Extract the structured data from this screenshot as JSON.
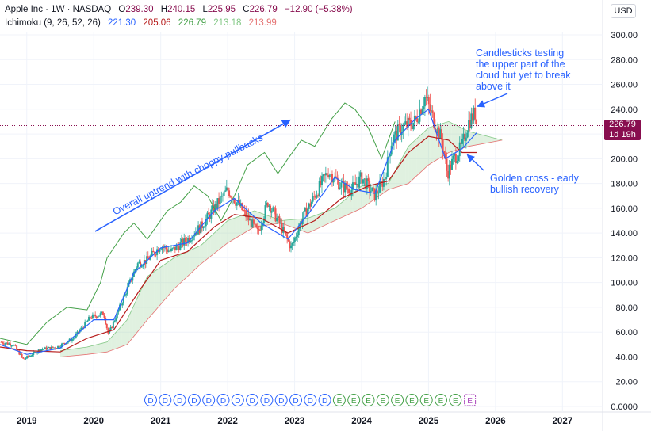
{
  "header": {
    "symbol": "Apple Inc · 1W · NASDAQ",
    "open_label": "O",
    "open": "239.30",
    "high_label": "H",
    "high": "240.15",
    "low_label": "L",
    "low": "225.95",
    "close_label": "C",
    "close": "226.79",
    "change": "−12.90 (−5.38%)",
    "indicator": "Ichimoku (9, 26, 52, 26)",
    "ind_values": [
      "221.30",
      "205.06",
      "226.79",
      "213.18",
      "213.99"
    ]
  },
  "currency": "USD",
  "last_price": {
    "value": "226.79",
    "countdown": "1d 19h"
  },
  "annotations": {
    "trend": "Overall uptrend with choppy pullbacks",
    "cloud_test": [
      "Candlesticks testing",
      "the upper part of the",
      "cloud but yet to break",
      "above it"
    ],
    "golden_cross": [
      "Golden cross - early",
      "bullish recovery"
    ]
  },
  "colors": {
    "up": "#26a69a",
    "down": "#ef5350",
    "conversion": "#2962ff",
    "base": "#b71c1c",
    "lagging": "#43a047",
    "cloud_bull": "#a5d6a7",
    "cloud_bear": "#ef9a9a",
    "annotation": "#2962ff",
    "price_line": "#880e4f"
  },
  "chart_data": {
    "type": "candlestick",
    "x_ticks": [
      "2019",
      "2020",
      "2021",
      "2022",
      "2023",
      "2024",
      "2025",
      "2026",
      "2027"
    ],
    "y_ticks": [
      "0.0000",
      "20.00",
      "40.00",
      "60.00",
      "80.00",
      "100.00",
      "120.00",
      "140.00",
      "160.00",
      "180.00",
      "200.00",
      "220.00",
      "240.00",
      "260.00",
      "280.00",
      "300.00"
    ],
    "ylim": [
      0,
      310
    ],
    "xlim": [
      2018.6,
      2027.6
    ],
    "close_path": [
      [
        2018.6,
        52
      ],
      [
        2018.8,
        50
      ],
      [
        2018.95,
        38
      ],
      [
        2019.2,
        46
      ],
      [
        2019.45,
        48
      ],
      [
        2019.7,
        55
      ],
      [
        2019.95,
        72
      ],
      [
        2020.15,
        75
      ],
      [
        2020.22,
        58
      ],
      [
        2020.45,
        88
      ],
      [
        2020.65,
        115
      ],
      [
        2020.8,
        118
      ],
      [
        2021.0,
        130
      ],
      [
        2021.15,
        125
      ],
      [
        2021.4,
        135
      ],
      [
        2021.6,
        145
      ],
      [
        2021.8,
        160
      ],
      [
        2022.0,
        175
      ],
      [
        2022.2,
        160
      ],
      [
        2022.45,
        140
      ],
      [
        2022.6,
        165
      ],
      [
        2022.8,
        145
      ],
      [
        2022.95,
        128
      ],
      [
        2023.1,
        150
      ],
      [
        2023.3,
        170
      ],
      [
        2023.5,
        190
      ],
      [
        2023.7,
        178
      ],
      [
        2023.85,
        175
      ],
      [
        2024.0,
        185
      ],
      [
        2024.2,
        170
      ],
      [
        2024.35,
        185
      ],
      [
        2024.45,
        215
      ],
      [
        2024.6,
        225
      ],
      [
        2024.8,
        230
      ],
      [
        2024.95,
        250
      ],
      [
        2025.05,
        235
      ],
      [
        2025.2,
        215
      ],
      [
        2025.28,
        188
      ],
      [
        2025.38,
        200
      ],
      [
        2025.5,
        210
      ],
      [
        2025.6,
        230
      ],
      [
        2025.7,
        237
      ],
      [
        2025.72,
        227
      ]
    ],
    "conversion_line": [
      [
        2018.6,
        50
      ],
      [
        2019.0,
        42
      ],
      [
        2019.5,
        47
      ],
      [
        2020.0,
        70
      ],
      [
        2020.3,
        70
      ],
      [
        2020.6,
        108
      ],
      [
        2021.0,
        128
      ],
      [
        2021.4,
        132
      ],
      [
        2021.8,
        158
      ],
      [
        2022.1,
        168
      ],
      [
        2022.5,
        148
      ],
      [
        2022.9,
        135
      ],
      [
        2023.2,
        155
      ],
      [
        2023.6,
        185
      ],
      [
        2023.9,
        175
      ],
      [
        2024.2,
        172
      ],
      [
        2024.5,
        215
      ],
      [
        2024.8,
        232
      ],
      [
        2025.0,
        240
      ],
      [
        2025.25,
        200
      ],
      [
        2025.5,
        208
      ],
      [
        2025.72,
        221
      ]
    ],
    "base_line": [
      [
        2018.6,
        48
      ],
      [
        2019.0,
        45
      ],
      [
        2019.5,
        44
      ],
      [
        2019.9,
        55
      ],
      [
        2020.3,
        62
      ],
      [
        2020.7,
        95
      ],
      [
        2021.0,
        118
      ],
      [
        2021.4,
        125
      ],
      [
        2021.8,
        145
      ],
      [
        2022.1,
        155
      ],
      [
        2022.5,
        152
      ],
      [
        2022.9,
        140
      ],
      [
        2023.3,
        150
      ],
      [
        2023.7,
        168
      ],
      [
        2024.1,
        178
      ],
      [
        2024.4,
        182
      ],
      [
        2024.7,
        205
      ],
      [
        2025.0,
        218
      ],
      [
        2025.3,
        215
      ],
      [
        2025.5,
        205
      ],
      [
        2025.72,
        205
      ]
    ],
    "lagging_span": [
      [
        2018.6,
        55
      ],
      [
        2019.0,
        50
      ],
      [
        2019.3,
        68
      ],
      [
        2019.6,
        80
      ],
      [
        2019.9,
        78
      ],
      [
        2020.1,
        100
      ],
      [
        2020.2,
        120
      ],
      [
        2020.45,
        140
      ],
      [
        2020.6,
        148
      ],
      [
        2020.8,
        135
      ],
      [
        2021.1,
        158
      ],
      [
        2021.3,
        165
      ],
      [
        2021.5,
        178
      ],
      [
        2021.7,
        170
      ],
      [
        2021.9,
        150
      ],
      [
        2022.1,
        170
      ],
      [
        2022.3,
        195
      ],
      [
        2022.55,
        205
      ],
      [
        2022.75,
        188
      ],
      [
        2022.9,
        200
      ],
      [
        2023.1,
        215
      ],
      [
        2023.3,
        210
      ],
      [
        2023.55,
        232
      ],
      [
        2023.75,
        245
      ],
      [
        2023.9,
        240
      ],
      [
        2024.1,
        225
      ],
      [
        2024.3,
        200
      ],
      [
        2024.5,
        230
      ]
    ],
    "span_a": [
      [
        2019.5,
        45
      ],
      [
        2019.9,
        48
      ],
      [
        2020.2,
        52
      ],
      [
        2020.5,
        70
      ],
      [
        2020.8,
        105
      ],
      [
        2021.2,
        120
      ],
      [
        2021.6,
        130
      ],
      [
        2022.0,
        150
      ],
      [
        2022.4,
        158
      ],
      [
        2022.8,
        150
      ],
      [
        2023.2,
        152
      ],
      [
        2023.6,
        160
      ],
      [
        2024.0,
        178
      ],
      [
        2024.4,
        180
      ],
      [
        2024.7,
        210
      ],
      [
        2025.0,
        225
      ],
      [
        2025.3,
        230
      ],
      [
        2025.6,
        222
      ],
      [
        2026.1,
        215
      ]
    ],
    "span_b": [
      [
        2019.5,
        40
      ],
      [
        2019.9,
        42
      ],
      [
        2020.2,
        44
      ],
      [
        2020.5,
        50
      ],
      [
        2020.8,
        70
      ],
      [
        2021.2,
        95
      ],
      [
        2021.6,
        115
      ],
      [
        2022.0,
        132
      ],
      [
        2022.4,
        145
      ],
      [
        2022.8,
        148
      ],
      [
        2023.2,
        140
      ],
      [
        2023.6,
        150
      ],
      [
        2024.0,
        160
      ],
      [
        2024.4,
        175
      ],
      [
        2024.7,
        180
      ],
      [
        2025.0,
        195
      ],
      [
        2025.3,
        205
      ],
      [
        2025.6,
        210
      ],
      [
        2026.1,
        215
      ]
    ],
    "last_price": 226.79,
    "events": [
      "D",
      "D",
      "D",
      "D",
      "D",
      "D",
      "D",
      "D",
      "D",
      "D",
      "D",
      "D",
      "D",
      "E",
      "E",
      "E",
      "E",
      "E",
      "E",
      "E",
      "E",
      "E",
      "E"
    ]
  }
}
